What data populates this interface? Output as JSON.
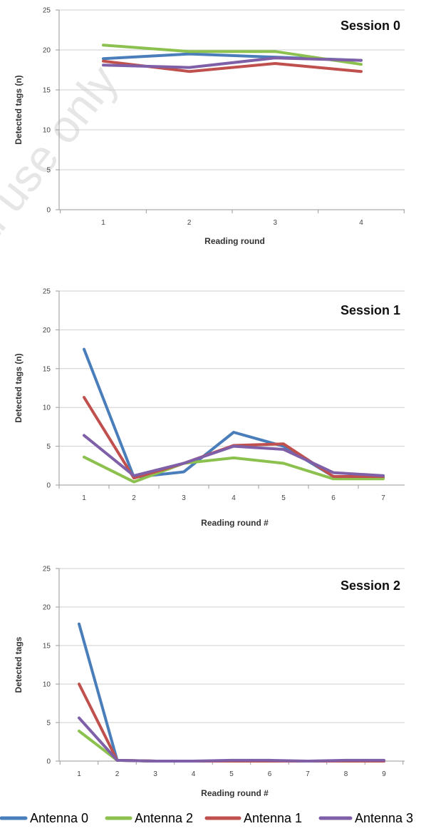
{
  "watermark": "al use only",
  "colors": {
    "antenna0": "#4a7ebb",
    "antenna2": "#8cc14f",
    "antenna1": "#c0504d",
    "antenna3": "#7f60a8",
    "grid": "#cfcfcf",
    "axis": "#9a9a9a"
  },
  "legend": [
    {
      "label": "Antenna 0",
      "color": "#4a7ebb"
    },
    {
      "label": "Antenna 2",
      "color": "#8cc14f"
    },
    {
      "label": "Antenna 1",
      "color": "#c0504d"
    },
    {
      "label": "Antenna 3",
      "color": "#7f60a8"
    }
  ],
  "chart_data": [
    {
      "type": "line",
      "title": "Session 0",
      "xlabel": "Reading round",
      "ylabel": "Detected tags (n)",
      "x": [
        1,
        2,
        3,
        4
      ],
      "ylim": [
        0,
        25
      ],
      "yticks": [
        0,
        5,
        10,
        15,
        20,
        25
      ],
      "grid": true,
      "series": [
        {
          "name": "Antenna 0",
          "color": "#4a7ebb",
          "values": [
            18.9,
            19.5,
            19.1,
            18.7
          ]
        },
        {
          "name": "Antenna 2",
          "color": "#8cc14f",
          "values": [
            20.6,
            19.8,
            19.8,
            18.2
          ]
        },
        {
          "name": "Antenna 1",
          "color": "#c0504d",
          "values": [
            18.6,
            17.3,
            18.3,
            17.3
          ]
        },
        {
          "name": "Antenna 3",
          "color": "#7f60a8",
          "values": [
            18.1,
            17.8,
            19.0,
            18.7
          ]
        }
      ]
    },
    {
      "type": "line",
      "title": "Session 1",
      "xlabel": "Reading round #",
      "ylabel": "Detected tags (n)",
      "x": [
        1,
        2,
        3,
        4,
        5,
        6,
        7
      ],
      "ylim": [
        0,
        25
      ],
      "yticks": [
        0,
        5,
        10,
        15,
        20,
        25
      ],
      "grid": true,
      "series": [
        {
          "name": "Antenna 0",
          "color": "#4a7ebb",
          "values": [
            17.5,
            1.0,
            1.7,
            6.8,
            5.0,
            1.1,
            1.0
          ]
        },
        {
          "name": "Antenna 2",
          "color": "#8cc14f",
          "values": [
            3.6,
            0.4,
            2.8,
            3.5,
            2.8,
            0.8,
            0.8
          ]
        },
        {
          "name": "Antenna 1",
          "color": "#c0504d",
          "values": [
            11.3,
            0.9,
            2.8,
            5.1,
            5.3,
            1.1,
            1.1
          ]
        },
        {
          "name": "Antenna 3",
          "color": "#7f60a8",
          "values": [
            6.4,
            1.2,
            2.8,
            5.0,
            4.6,
            1.6,
            1.2
          ]
        }
      ]
    },
    {
      "type": "line",
      "title": "Session 2",
      "xlabel": "Reading round #",
      "ylabel": "Detected tags",
      "x": [
        1,
        2,
        3,
        4,
        5,
        6,
        7,
        8,
        9
      ],
      "ylim": [
        0,
        25
      ],
      "yticks": [
        0,
        5,
        10,
        15,
        20,
        25
      ],
      "grid": true,
      "series": [
        {
          "name": "Antenna 0",
          "color": "#4a7ebb",
          "values": [
            17.8,
            0.1,
            0,
            0,
            0,
            0,
            0,
            0,
            0
          ]
        },
        {
          "name": "Antenna 2",
          "color": "#8cc14f",
          "values": [
            3.9,
            0.1,
            0,
            0,
            0,
            0,
            0,
            0,
            0
          ]
        },
        {
          "name": "Antenna 1",
          "color": "#c0504d",
          "values": [
            10.0,
            0.1,
            0,
            0,
            0,
            0,
            0,
            0,
            0
          ]
        },
        {
          "name": "Antenna 3",
          "color": "#7f60a8",
          "values": [
            5.6,
            0.1,
            0,
            0,
            0.1,
            0.1,
            0,
            0.1,
            0.1
          ]
        }
      ]
    }
  ]
}
